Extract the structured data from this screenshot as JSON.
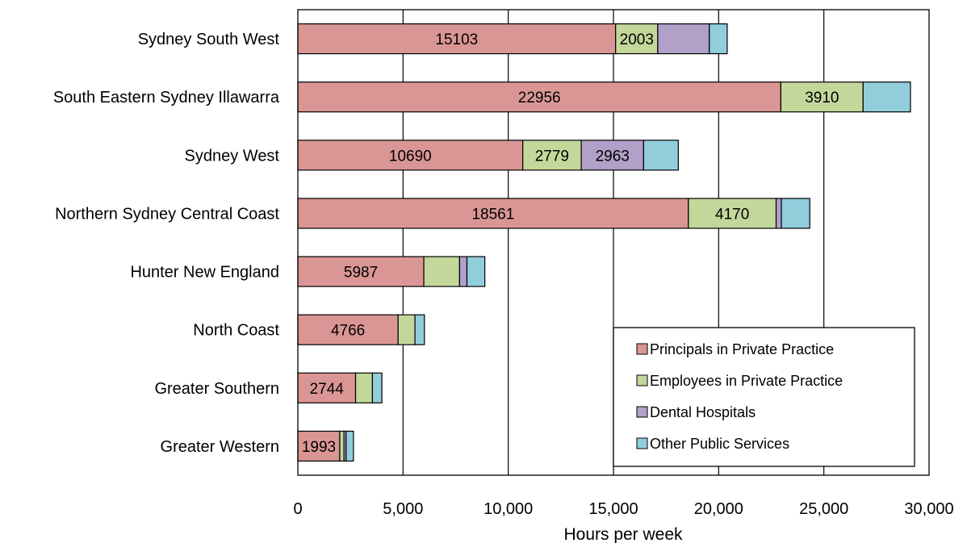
{
  "chart_data": {
    "type": "bar",
    "orientation": "horizontal",
    "stacked": true,
    "title": "",
    "xlabel": "Hours per week",
    "ylabel": "",
    "xlim": [
      0,
      30000
    ],
    "xticks": [
      0,
      5000,
      10000,
      15000,
      20000,
      25000,
      30000
    ],
    "xtick_labels": [
      "0",
      "5,000",
      "10,000",
      "15,000",
      "20,000",
      "25,000",
      "30,000"
    ],
    "grid": "vertical major gridlines",
    "legend_position": "bottom-right inside plot",
    "categories": [
      "Sydney South West",
      "South Eastern Sydney Illawarra",
      "Sydney West",
      "Northern Sydney Central Coast",
      "Hunter New England",
      "North Coast",
      "Greater Southern",
      "Greater Western"
    ],
    "series": [
      {
        "name": "Principals in Private Practice",
        "color": "#DA9694",
        "values": [
          15103,
          22956,
          10690,
          18561,
          5987,
          4766,
          2744,
          1993
        ],
        "labels": [
          "15103",
          "22956",
          "10690",
          "18561",
          "5987",
          "4766",
          "2744",
          "1993"
        ]
      },
      {
        "name": "Employees in Private Practice",
        "color": "#C4D79B",
        "values": [
          2003,
          3910,
          2779,
          4170,
          1700,
          800,
          800,
          200
        ],
        "labels": [
          "2003",
          "3910",
          "2779",
          "4170",
          "",
          "",
          "",
          ""
        ]
      },
      {
        "name": "Dental Hospitals",
        "color": "#B1A0C7",
        "values": [
          2450,
          0,
          2963,
          250,
          350,
          0,
          0,
          100
        ],
        "labels": [
          "",
          "",
          "2963",
          "",
          "",
          "",
          "",
          ""
        ]
      },
      {
        "name": "Other Public Services",
        "color": "#92CDDC",
        "values": [
          850,
          2250,
          1650,
          1350,
          850,
          450,
          450,
          350
        ],
        "labels": [
          "",
          "",
          "",
          "",
          "",
          "",
          "",
          ""
        ]
      }
    ]
  }
}
